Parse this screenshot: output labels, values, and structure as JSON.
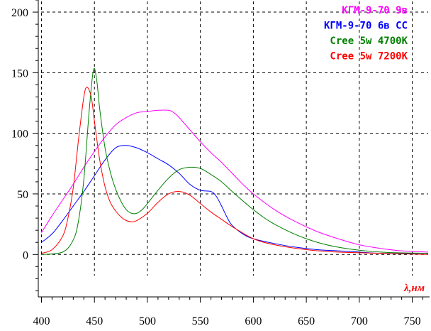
{
  "chart_data": {
    "type": "line",
    "title": "",
    "xlabel": "λ,нм",
    "ylabel": "",
    "xlim": [
      397,
      765
    ],
    "ylim": [
      -35,
      210
    ],
    "grid": true,
    "legend_position": "top-right",
    "x_ticks": [
      400,
      450,
      500,
      550,
      600,
      650,
      700,
      750
    ],
    "y_ticks": [
      0,
      50,
      100,
      150,
      200
    ],
    "xlabel_color": "#ff0000",
    "series": [
      {
        "name": "КГМ-9-70 9в",
        "color": "#ff00ff",
        "x": [
          400,
          410,
          420,
          430,
          440,
          450,
          460,
          470,
          480,
          490,
          500,
          510,
          520,
          525,
          530,
          540,
          550,
          560,
          570,
          580,
          590,
          600,
          620,
          640,
          660,
          680,
          700,
          720,
          740,
          765
        ],
        "y": [
          18,
          32,
          45,
          58,
          72,
          85,
          97,
          107,
          113,
          117,
          118,
          119,
          119,
          117,
          113,
          103,
          93,
          84,
          76,
          67,
          58,
          50,
          37,
          27,
          19,
          13,
          8,
          5,
          3,
          2
        ]
      },
      {
        "name": "КГМ-9-70 6в СС",
        "color": "#0000ff",
        "x": [
          400,
          410,
          420,
          430,
          440,
          450,
          460,
          470,
          480,
          490,
          500,
          510,
          520,
          530,
          540,
          550,
          560,
          565,
          570,
          575,
          580,
          590,
          600,
          620,
          640,
          660,
          680,
          700,
          720,
          765
        ],
        "y": [
          10,
          17,
          28,
          40,
          52,
          65,
          78,
          88,
          90,
          88,
          84,
          79,
          74,
          67,
          58,
          53,
          52,
          48,
          40,
          31,
          24,
          17,
          13,
          9,
          6,
          4,
          3,
          2,
          1,
          1
        ]
      },
      {
        "name": "Cree 5w 4700K",
        "color": "#008000",
        "x": [
          400,
          420,
          430,
          435,
          440,
          445,
          449,
          452,
          455,
          460,
          465,
          470,
          475,
          480,
          485,
          490,
          495,
          500,
          510,
          520,
          530,
          540,
          550,
          560,
          570,
          580,
          600,
          620,
          650,
          680,
          720,
          765
        ],
        "y": [
          0,
          2,
          12,
          28,
          62,
          118,
          152,
          145,
          120,
          88,
          68,
          54,
          44,
          37,
          34,
          34,
          37,
          42,
          53,
          63,
          70,
          72,
          71,
          66,
          60,
          52,
          37,
          25,
          13,
          6,
          2,
          1
        ]
      },
      {
        "name": "Cree 5w 7200K",
        "color": "#ff0000",
        "x": [
          400,
          410,
          420,
          425,
          430,
          435,
          440,
          443,
          447,
          450,
          455,
          460,
          465,
          470,
          475,
          480,
          485,
          490,
          500,
          510,
          520,
          530,
          540,
          550,
          560,
          570,
          580,
          600,
          620,
          650,
          680,
          720,
          765
        ],
        "y": [
          1,
          4,
          15,
          30,
          55,
          95,
          130,
          138,
          130,
          110,
          78,
          56,
          43,
          36,
          31,
          28,
          27,
          28,
          34,
          43,
          50,
          52,
          49,
          42,
          35,
          29,
          23,
          13,
          8,
          4,
          2,
          1,
          0
        ]
      }
    ]
  }
}
